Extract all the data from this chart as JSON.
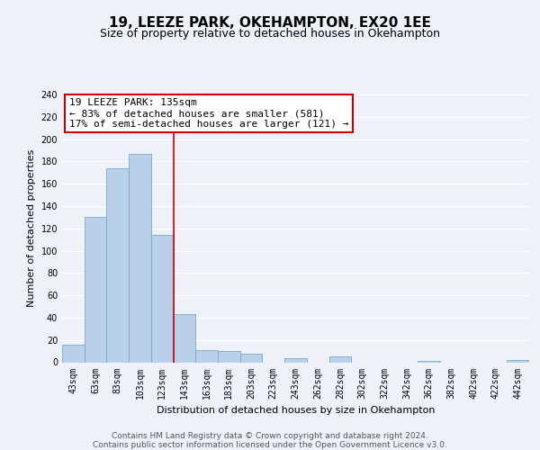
{
  "title": "19, LEEZE PARK, OKEHAMPTON, EX20 1EE",
  "subtitle": "Size of property relative to detached houses in Okehampton",
  "xlabel": "Distribution of detached houses by size in Okehampton",
  "ylabel": "Number of detached properties",
  "bar_labels": [
    "43sqm",
    "63sqm",
    "83sqm",
    "103sqm",
    "123sqm",
    "143sqm",
    "163sqm",
    "183sqm",
    "203sqm",
    "223sqm",
    "243sqm",
    "262sqm",
    "282sqm",
    "302sqm",
    "322sqm",
    "342sqm",
    "362sqm",
    "382sqm",
    "402sqm",
    "422sqm",
    "442sqm"
  ],
  "bar_values": [
    16,
    130,
    174,
    187,
    114,
    43,
    11,
    10,
    8,
    0,
    4,
    0,
    5,
    0,
    0,
    0,
    1,
    0,
    0,
    0,
    2
  ],
  "bar_color": "#b8d0e8",
  "bar_edge_color": "#7aaac8",
  "vline_x_idx": 5,
  "vline_color": "#cc0000",
  "ylim": [
    0,
    240
  ],
  "yticks": [
    0,
    20,
    40,
    60,
    80,
    100,
    120,
    140,
    160,
    180,
    200,
    220,
    240
  ],
  "annotation_title": "19 LEEZE PARK: 135sqm",
  "annotation_line1": "← 83% of detached houses are smaller (581)",
  "annotation_line2": "17% of semi-detached houses are larger (121) →",
  "annotation_box_color": "#ffffff",
  "annotation_box_edge": "#cc0000",
  "footer_line1": "Contains HM Land Registry data © Crown copyright and database right 2024.",
  "footer_line2": "Contains public sector information licensed under the Open Government Licence v3.0.",
  "bg_color": "#eef2f8",
  "plot_bg_color": "#eef2f8",
  "grid_color": "#ffffff",
  "title_fontsize": 11,
  "subtitle_fontsize": 9,
  "axis_label_fontsize": 8,
  "tick_fontsize": 7,
  "annotation_fontsize": 8,
  "footer_fontsize": 6.5
}
